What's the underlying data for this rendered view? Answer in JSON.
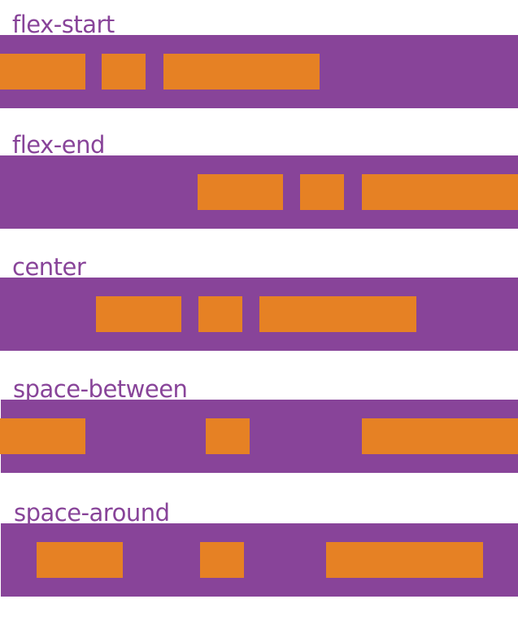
{
  "rows": [
    {
      "label": "flex-start"
    },
    {
      "label": "flex-end"
    },
    {
      "label": "center"
    },
    {
      "label": "space-between"
    },
    {
      "label": "space-around"
    }
  ],
  "colors": {
    "container": "#884499",
    "item": "#e68124",
    "label": "#884499"
  }
}
